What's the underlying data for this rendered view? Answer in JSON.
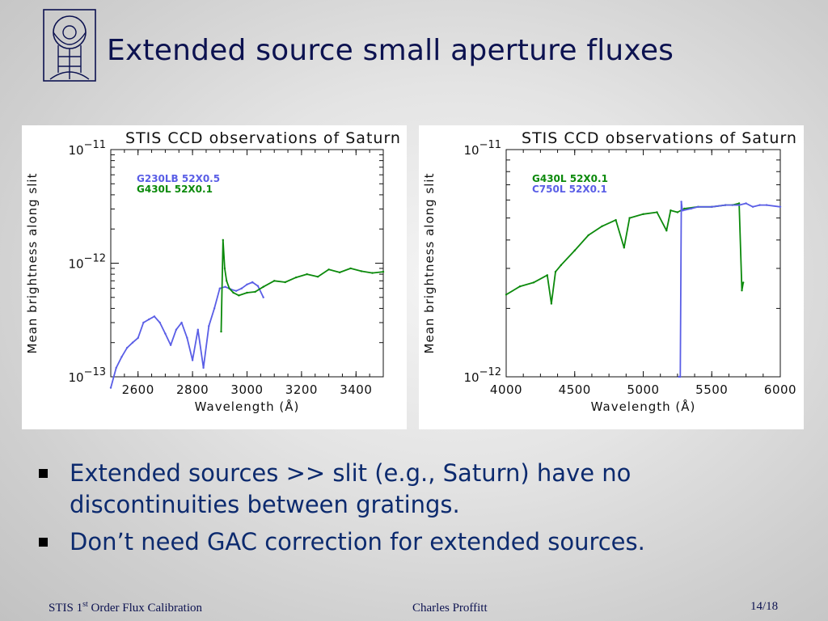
{
  "slide": {
    "title": "Extended source small aperture fluxes",
    "bullets": [
      "Extended sources >> slit (e.g., Saturn) have no discontinuities between gratings.",
      "Don’t need GAC correction for extended sources."
    ]
  },
  "footer": {
    "left_prefix": "STIS 1",
    "left_sup": "st",
    "left_suffix": " Order Flux Calibration",
    "center": "Charles Proffitt",
    "right": "14/18"
  },
  "colors": {
    "title": "#0c1250",
    "bullet_text": "#0c2a6e",
    "series_blue": "#5a5ee6",
    "series_green": "#0c8a0c"
  },
  "chart_data": [
    {
      "type": "line",
      "title": "STIS CCD observations of Saturn",
      "xlabel": "Wavelength (Å)",
      "ylabel": "Mean brightness along slit",
      "xlim": [
        2500,
        3500
      ],
      "ylim": [
        1e-13,
        1e-11
      ],
      "yscale": "log",
      "xticks": [
        2600,
        2800,
        3000,
        3200,
        3400
      ],
      "yticks": [
        {
          "value": 1e-11,
          "base": "10",
          "exp": "−11"
        },
        {
          "value": 1e-12,
          "base": "10",
          "exp": "−12"
        },
        {
          "value": 1e-13,
          "base": "10",
          "exp": "−13"
        }
      ],
      "legend_position": "top-left",
      "series": [
        {
          "name": "G230LB 52X0.5",
          "color": "#5a5ee6",
          "x": [
            2500,
            2520,
            2540,
            2560,
            2580,
            2600,
            2620,
            2640,
            2660,
            2680,
            2700,
            2720,
            2740,
            2760,
            2780,
            2800,
            2820,
            2840,
            2860,
            2880,
            2900,
            2920,
            2940,
            2960,
            2980,
            3000,
            3020,
            3040,
            3060
          ],
          "y": [
            8e-14,
            1.2e-13,
            1.5e-13,
            1.8e-13,
            2e-13,
            2.2e-13,
            3e-13,
            3.2e-13,
            3.4e-13,
            3e-13,
            2.4e-13,
            1.9e-13,
            2.6e-13,
            3e-13,
            2.2e-13,
            1.4e-13,
            2.6e-13,
            1.2e-13,
            2.8e-13,
            4e-13,
            6e-13,
            6.2e-13,
            5.9e-13,
            5.7e-13,
            6e-13,
            6.5e-13,
            6.8e-13,
            6.3e-13,
            5e-13
          ]
        },
        {
          "name": "G430L 52X0.1",
          "color": "#0c8a0c",
          "x": [
            2905,
            2912,
            2918,
            2925,
            2935,
            2950,
            2970,
            3000,
            3030,
            3060,
            3100,
            3140,
            3180,
            3220,
            3260,
            3300,
            3340,
            3380,
            3420,
            3460,
            3500
          ],
          "y": [
            2.5e-13,
            1.6e-12,
            9e-13,
            7e-13,
            6e-13,
            5.5e-13,
            5.2e-13,
            5.5e-13,
            5.6e-13,
            6.2e-13,
            7e-13,
            6.8e-13,
            7.5e-13,
            8e-13,
            7.6e-13,
            8.8e-13,
            8.3e-13,
            9e-13,
            8.5e-13,
            8.2e-13,
            8.4e-13
          ]
        }
      ]
    },
    {
      "type": "line",
      "title": "STIS CCD observations of Saturn",
      "xlabel": "Wavelength (Å)",
      "ylabel": "Mean brightness along slit",
      "xlim": [
        4000,
        6000
      ],
      "ylim": [
        1e-12,
        1e-11
      ],
      "yscale": "log",
      "xticks": [
        4000,
        4500,
        5000,
        5500,
        6000
      ],
      "yticks": [
        {
          "value": 1e-11,
          "base": "10",
          "exp": "−11"
        },
        {
          "value": 1e-12,
          "base": "10",
          "exp": "−12"
        }
      ],
      "legend_position": "top-left",
      "series": [
        {
          "name": "G430L 52X0.1",
          "color": "#0c8a0c",
          "x": [
            4000,
            4100,
            4200,
            4300,
            4330,
            4360,
            4400,
            4500,
            4600,
            4700,
            4800,
            4860,
            4900,
            5000,
            5100,
            5170,
            5200,
            5250,
            5300,
            5400,
            5500,
            5600,
            5650,
            5700,
            5720,
            5730
          ],
          "y": [
            2.3e-12,
            2.5e-12,
            2.6e-12,
            2.8e-12,
            2.1e-12,
            2.9e-12,
            3.1e-12,
            3.6e-12,
            4.2e-12,
            4.6e-12,
            4.9e-12,
            3.7e-12,
            5e-12,
            5.2e-12,
            5.3e-12,
            4.4e-12,
            5.4e-12,
            5.3e-12,
            5.5e-12,
            5.6e-12,
            5.6e-12,
            5.7e-12,
            5.7e-12,
            5.8e-12,
            2.4e-12,
            2.6e-12
          ]
        },
        {
          "name": "C750L 52X0.1",
          "color": "#5a5ee6",
          "x": [
            5260,
            5270,
            5278,
            5285,
            5290,
            5350,
            5400,
            5500,
            5600,
            5700,
            5750,
            5800,
            5850,
            5900,
            6000
          ],
          "y": [
            1e-12,
            1e-12,
            5.9e-12,
            5.4e-12,
            5.4e-12,
            5.5e-12,
            5.6e-12,
            5.6e-12,
            5.7e-12,
            5.7e-12,
            5.8e-12,
            5.6e-12,
            5.7e-12,
            5.7e-12,
            5.6e-12
          ]
        }
      ]
    }
  ]
}
